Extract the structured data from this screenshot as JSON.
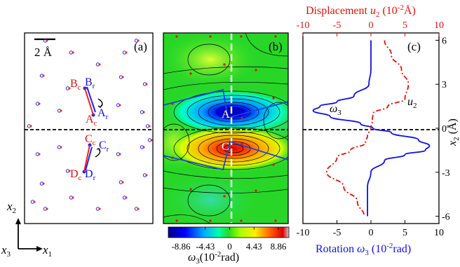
{
  "panel_a": {
    "label": "(a)",
    "scale_label": "2 Å",
    "atom_labels": {
      "B_c": "B",
      "B_c_sub": "c",
      "B_r": "B",
      "B_r_sub": "r",
      "A_c": "A",
      "A_c_sub": "c",
      "A_r": "A",
      "A_r_sub": "r",
      "C_c": "C",
      "C_c_sub": "c",
      "C_r": "C",
      "C_r_sub": "r",
      "D_c": "D",
      "D_c_sub": "c",
      "D_r": "D",
      "D_r_sub": "r"
    },
    "axes": {
      "x1": "x",
      "x1_sub": "1",
      "x2": "x",
      "x2_sub": "2",
      "x3": "x",
      "x3_sub": "3"
    }
  },
  "panel_b": {
    "label": "(b)",
    "point_A": "A",
    "point_C": "C",
    "colorbar_ticks": [
      "-8.86",
      "-4.43",
      "0",
      "4.43",
      "8.86"
    ],
    "colorbar_label_main": "ω",
    "colorbar_label_sub": "3",
    "colorbar_label_rest": "(10",
    "colorbar_label_exp": "-2",
    "colorbar_label_unit": "rad)",
    "colors": {
      "negative": "#0000cc",
      "zero": "#22dd22",
      "positive": "#dd0000"
    }
  },
  "panel_c": {
    "label": "(c)",
    "top_axis_title": "Displacement ",
    "top_axis_var": "u",
    "top_axis_sub": "2",
    "top_axis_unit_pre": " (10",
    "top_axis_exp": "-2",
    "top_axis_unit_post": "Å)",
    "top_ticks": [
      "-10",
      "-5",
      "0",
      "5",
      "10"
    ],
    "bottom_axis_title": "Rotation ",
    "bottom_axis_var": "ω",
    "bottom_axis_sub": "3",
    "bottom_axis_unit_pre": " (10",
    "bottom_axis_exp": "-2",
    "bottom_axis_unit_post": "rad)",
    "bottom_ticks": [
      "-10",
      "-5",
      "0",
      "5",
      "10"
    ],
    "right_ticks": [
      "6",
      "3",
      "0",
      "-3",
      "-6"
    ],
    "right_axis_var": "x",
    "right_axis_sub": "2",
    "right_axis_unit": " (Å)",
    "curve_label_omega": "ω",
    "curve_label_omega_sub": "3",
    "curve_label_u": "u",
    "curve_label_u_sub": "2",
    "colors": {
      "rotation": "#1010dd",
      "displacement": "#dd1010"
    }
  },
  "chart_data": {
    "type": "line",
    "x2_range": [
      -6.5,
      6.5
    ],
    "top_xlim": [
      -10,
      10
    ],
    "bottom_xlim": [
      -10,
      10
    ],
    "series": [
      {
        "name": "ω3",
        "x2": [
          6,
          4,
          3,
          2.2,
          1.8,
          1.5,
          1.2,
          0.8,
          0.3,
          0,
          -0.3,
          -0.8,
          -1.2,
          -1.5,
          -1.8,
          -2.2,
          -3,
          -4,
          -6
        ],
        "values": [
          0,
          0,
          -0.3,
          -2.5,
          -5,
          -7.5,
          -8.5,
          -6,
          -1.5,
          0.3,
          3,
          7,
          8.6,
          8,
          5,
          2,
          0,
          -0.5,
          -0.5
        ]
      },
      {
        "name": "u2",
        "x2": [
          6,
          5,
          4,
          3,
          2,
          1.5,
          1,
          0.5,
          0,
          -0.5,
          -1,
          -1.5,
          -2,
          -3,
          -4,
          -5,
          -6
        ],
        "values": [
          2,
          3,
          4.5,
          5.5,
          5,
          2.5,
          0.3,
          0.2,
          0,
          -0.5,
          -0.8,
          -3,
          -5,
          -6.5,
          -4,
          -2,
          -1
        ]
      }
    ]
  }
}
